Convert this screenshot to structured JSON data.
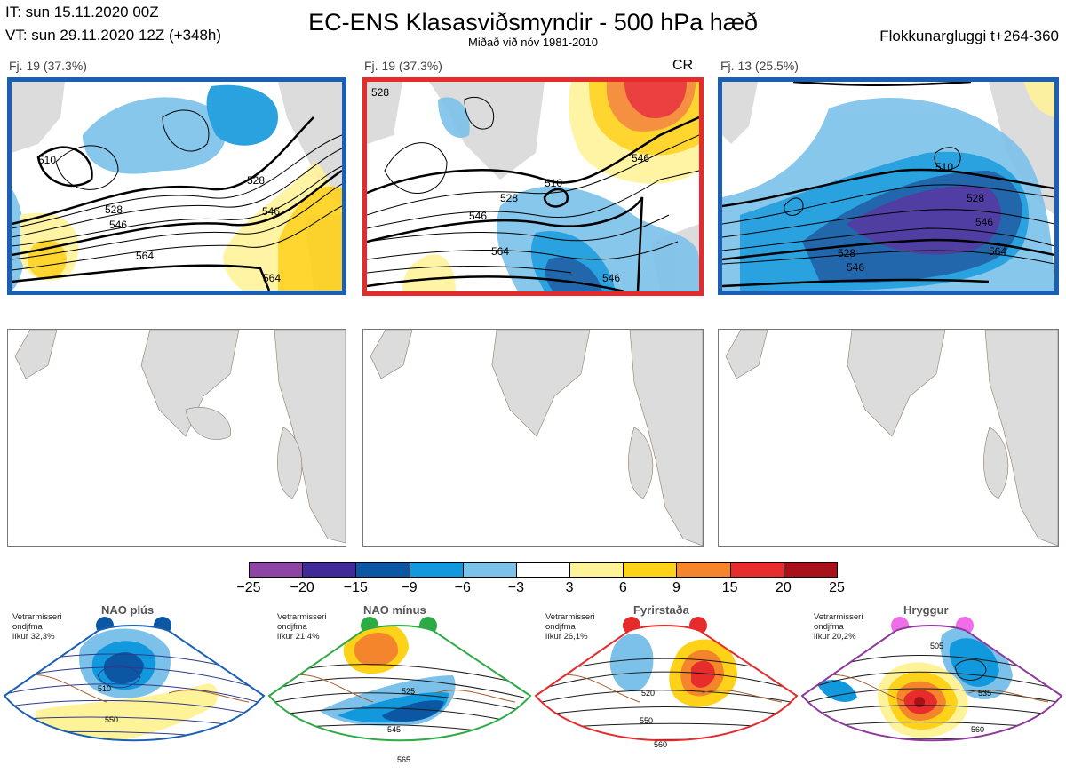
{
  "header": {
    "it": "IT: sun 15.11.2020 00Z",
    "vt": "VT: sun 29.11.2020 12Z  (+348h)",
    "title": "EC-ENS Klasasviðsmyndir - 500 hPa hæð",
    "subtitle": "Miðað við nóv 1981-2010",
    "cluster_window": "Flokkunargluggi t+264-360"
  },
  "panels": [
    {
      "label": "Fj. 19 (37.3%)",
      "border": "#1a5fb4",
      "tag": "",
      "contours": [
        "510",
        "528",
        "546",
        "564",
        "528",
        "546",
        "564"
      ]
    },
    {
      "label": "Fj. 19 (37.3%)",
      "border": "#e52b2b",
      "tag": "CR",
      "contours": [
        "528",
        "510",
        "528",
        "546",
        "564",
        "546",
        "546"
      ]
    },
    {
      "label": "Fj. 13 (25.5%)",
      "border": "#1a5fb4",
      "tag": "",
      "contours": [
        "510",
        "528",
        "546",
        "564",
        "546",
        "528"
      ]
    }
  ],
  "colorbar": {
    "colors": [
      "#8e44a3",
      "#3f2a98",
      "#0b57a4",
      "#1298dc",
      "#7cc1ea",
      "#ffffff",
      "#fff39a",
      "#ffd21a",
      "#f4852c",
      "#e82c2c",
      "#a8101a"
    ],
    "ticks": [
      "−25",
      "−20",
      "−15",
      "−9",
      "−6",
      "−3",
      "3",
      "6",
      "9",
      "15",
      "20",
      "25"
    ]
  },
  "regimes": [
    {
      "name": "NAO plús",
      "note": [
        "Vetrarmisseri",
        "ondjfma",
        "líkur 32,3%"
      ],
      "color": "#1a5fb4",
      "dot": "#0b57a4",
      "contours": [
        "510",
        "550"
      ]
    },
    {
      "name": "NAO mínus",
      "note": [
        "Vetrarmisseri",
        "ondjfma",
        "líkur 21,4%"
      ],
      "color": "#2eaa44",
      "dot": "#2eaa44",
      "contours": [
        "525",
        "545",
        "565"
      ]
    },
    {
      "name": "Fyrirstaða",
      "note": [
        "Vetrarmisseri",
        "ondjfma",
        "líkur 26,1%"
      ],
      "color": "#e52b2b",
      "dot": "#e52b2b",
      "contours": [
        "520",
        "550",
        "560"
      ]
    },
    {
      "name": "Hryggur",
      "note": [
        "Vetrarmisseri",
        "ondjfma",
        "líkur 20,2%"
      ],
      "color": "#8e3a9a",
      "dot": "#ef6ee8",
      "contours": [
        "505",
        "535",
        "560"
      ]
    }
  ]
}
